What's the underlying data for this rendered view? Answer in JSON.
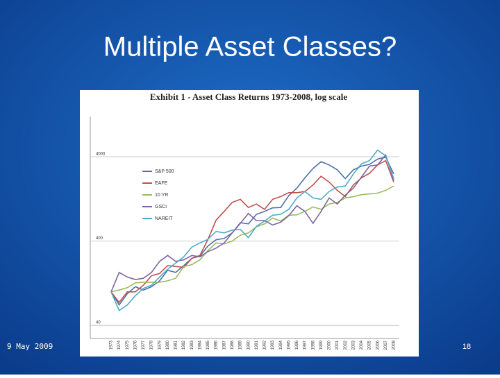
{
  "slide": {
    "title": "Multiple Asset Classes?",
    "date": "9 May 2009",
    "page": "18"
  },
  "chart_data": {
    "type": "line",
    "title": "Exhibit 1 - Asset Class Returns 1973-2008, log scale",
    "categories": [
      "1973",
      "1974",
      "1975",
      "1976",
      "1977",
      "1978",
      "1979",
      "1980",
      "1981",
      "1982",
      "1983",
      "1984",
      "1985",
      "1986",
      "1987",
      "1988",
      "1989",
      "1990",
      "1991",
      "1992",
      "1993",
      "1994",
      "1995",
      "1996",
      "1997",
      "1998",
      "1999",
      "2000",
      "2001",
      "2002",
      "2003",
      "2004",
      "2005",
      "2006",
      "2007",
      "2008"
    ],
    "series": [
      {
        "name": "S&P 500",
        "color": "#4f6fa8",
        "values": [
          100,
          70,
          95,
          115,
          105,
          115,
          135,
          180,
          170,
          205,
          250,
          265,
          350,
          415,
          430,
          500,
          660,
          640,
          830,
          900,
          990,
          1000,
          1380,
          1700,
          2250,
          2900,
          3500,
          3200,
          2800,
          2200,
          2800,
          3100,
          3250,
          3750,
          3950,
          2500
        ]
      },
      {
        "name": "EAFE",
        "color": "#c0504d",
        "values": [
          100,
          75,
          100,
          100,
          120,
          155,
          165,
          205,
          200,
          195,
          250,
          270,
          420,
          710,
          900,
          1150,
          1250,
          1000,
          1100,
          950,
          1250,
          1350,
          1500,
          1500,
          1550,
          1850,
          2350,
          2000,
          1600,
          1350,
          1850,
          2250,
          2550,
          3200,
          3600,
          2000
        ]
      },
      {
        "name": "10 YR",
        "color": "#9bbb59",
        "values": [
          100,
          105,
          112,
          128,
          130,
          130,
          130,
          135,
          145,
          200,
          210,
          240,
          310,
          380,
          370,
          400,
          470,
          500,
          590,
          640,
          750,
          690,
          810,
          820,
          900,
          1020,
          950,
          1100,
          1150,
          1300,
          1350,
          1420,
          1450,
          1480,
          1600,
          1800
        ]
      },
      {
        "name": "GSCI",
        "color": "#8064a2",
        "values": [
          100,
          170,
          150,
          140,
          145,
          170,
          230,
          270,
          230,
          240,
          270,
          260,
          300,
          330,
          380,
          500,
          650,
          850,
          700,
          700,
          620,
          670,
          800,
          1050,
          900,
          650,
          900,
          1300,
          1100,
          1400,
          1700,
          2300,
          3100,
          3200,
          4200,
          2100
        ]
      },
      {
        "name": "NAREIT",
        "color": "#4bacc6",
        "values": [
          100,
          60,
          70,
          90,
          110,
          120,
          150,
          185,
          220,
          260,
          340,
          380,
          420,
          520,
          500,
          540,
          550,
          440,
          600,
          690,
          810,
          830,
          950,
          1300,
          1550,
          1300,
          1250,
          1550,
          1750,
          1800,
          2500,
          3300,
          3600,
          4800,
          4100,
          2200
        ]
      }
    ],
    "ylim": [
      28,
      12000
    ],
    "yticks": [
      40,
      400,
      4000
    ],
    "log_scale": true,
    "grid": true,
    "legend": "upper left"
  }
}
